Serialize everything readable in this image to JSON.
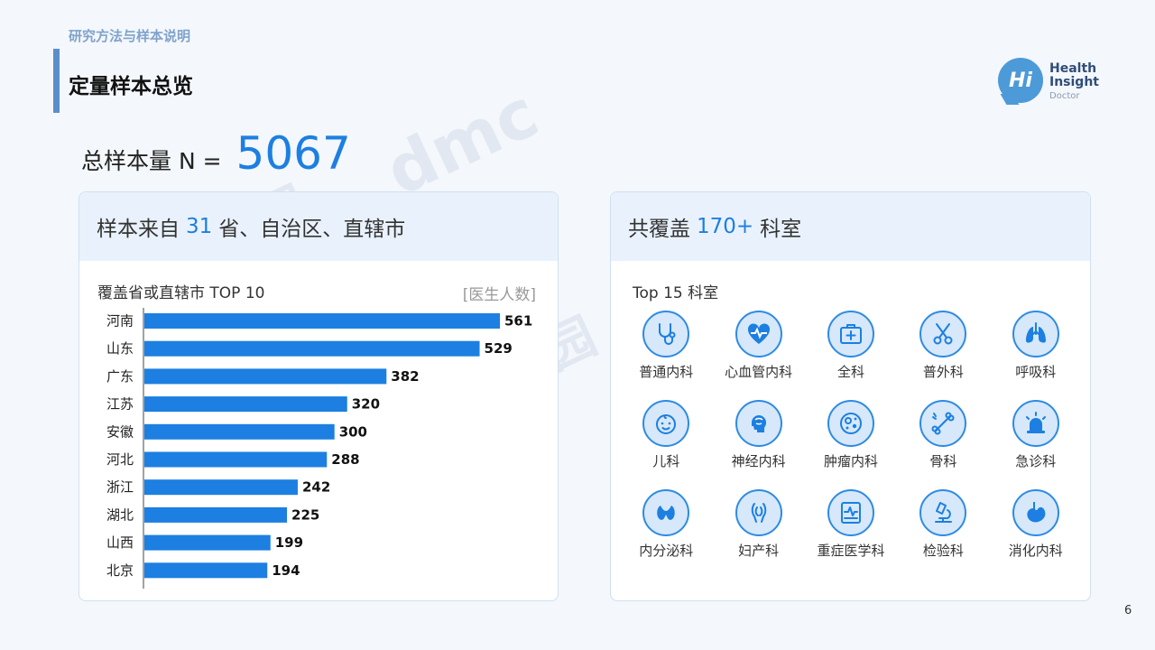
{
  "header": {
    "section_label": "研究方法与样本说明",
    "page_title": "定量样本总览"
  },
  "logo": {
    "bubble": "Hi",
    "line1": "Health",
    "line2": "Insight",
    "line3": "Doctor"
  },
  "sample": {
    "label": "总样本量 N =",
    "value": "5067"
  },
  "left_card": {
    "title_prefix": "样本来自",
    "title_number": "31",
    "title_suffix": "省、自治区、直辖市"
  },
  "chart_data": {
    "type": "bar",
    "orientation": "horizontal",
    "title": "覆盖省或直辖市 TOP 10",
    "unit": "[医生人数]",
    "categories": [
      "河南",
      "山东",
      "广东",
      "江苏",
      "安徽",
      "河北",
      "浙江",
      "湖北",
      "山西",
      "北京"
    ],
    "values": [
      561,
      529,
      382,
      320,
      300,
      288,
      242,
      225,
      199,
      194
    ],
    "bar_color": "#1c7fe1"
  },
  "right_card": {
    "title_prefix": "共覆盖",
    "title_number": "170+",
    "title_suffix": "科室",
    "subtitle": "Top 15 科室",
    "departments": [
      {
        "name": "普通内科",
        "icon": "stethoscope-icon"
      },
      {
        "name": "心血管内科",
        "icon": "heart-pulse-icon"
      },
      {
        "name": "全科",
        "icon": "medical-kit-icon"
      },
      {
        "name": "普外科",
        "icon": "surgical-scissors-icon"
      },
      {
        "name": "呼吸科",
        "icon": "lungs-icon"
      },
      {
        "name": "儿科",
        "icon": "baby-face-icon"
      },
      {
        "name": "神经内科",
        "icon": "brain-head-icon"
      },
      {
        "name": "肿瘤内科",
        "icon": "tumor-cell-icon"
      },
      {
        "name": "骨科",
        "icon": "bone-icon"
      },
      {
        "name": "急诊科",
        "icon": "siren-icon"
      },
      {
        "name": "内分泌科",
        "icon": "thyroid-icon"
      },
      {
        "name": "妇产科",
        "icon": "uterus-icon"
      },
      {
        "name": "重症医学科",
        "icon": "ecg-monitor-icon"
      },
      {
        "name": "检验科",
        "icon": "microscope-icon"
      },
      {
        "name": "消化内科",
        "icon": "stomach-icon"
      }
    ]
  },
  "page_number": "6",
  "watermarks": [
    "dmc",
    "丁香园"
  ],
  "colors": {
    "accent": "#1c7fe1",
    "card_header_bg": "#e9f2fc",
    "icon_bg": "#d6e8fa"
  }
}
